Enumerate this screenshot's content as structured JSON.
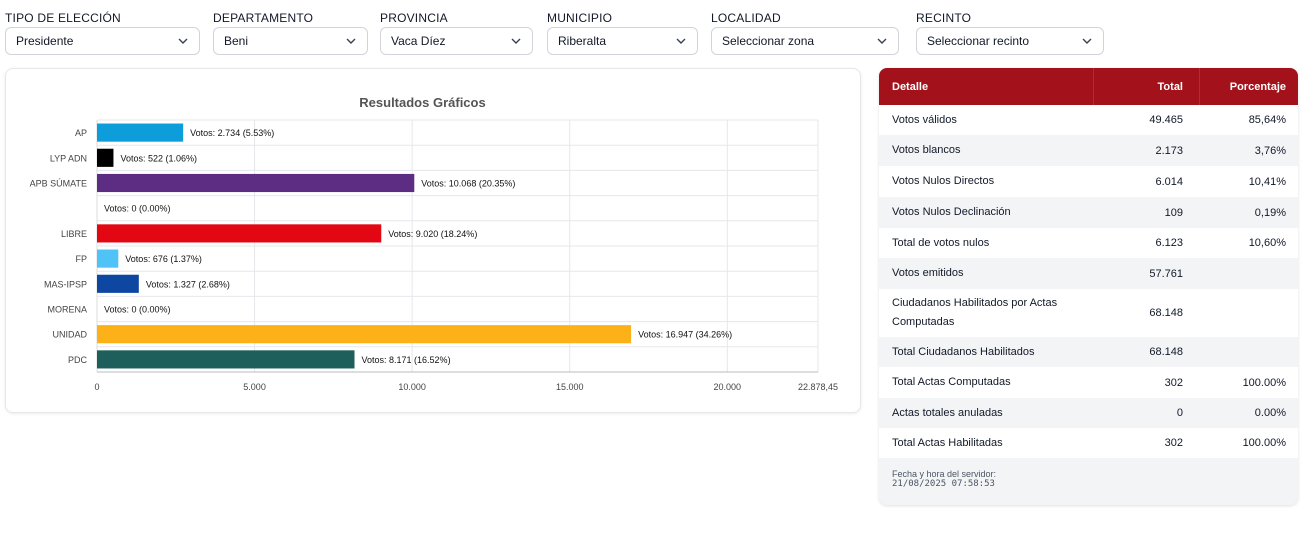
{
  "filters": [
    {
      "label": "TIPO DE ELECCIÓN",
      "value": "Presidente",
      "name": "tipo-eleccion"
    },
    {
      "label": "DEPARTAMENTO",
      "value": "Beni",
      "name": "departamento"
    },
    {
      "label": "PROVINCIA",
      "value": "Vaca Díez",
      "name": "provincia"
    },
    {
      "label": "MUNICIPIO",
      "value": "Riberalta",
      "name": "municipio"
    },
    {
      "label": "LOCALIDAD",
      "value": "Seleccionar zona",
      "name": "localidad"
    },
    {
      "label": "RECINTO",
      "value": "Seleccionar recinto",
      "name": "recinto"
    }
  ],
  "chart_data": {
    "type": "bar",
    "orientation": "horizontal",
    "title": "Resultados Gráficos",
    "categories": [
      "AP",
      "LYP ADN",
      "APB SÚMATE",
      "",
      "LIBRE",
      "FP",
      "MAS-IPSP",
      "MORENA",
      "UNIDAD",
      "PDC"
    ],
    "values": [
      2734,
      522,
      10068,
      0,
      9020,
      676,
      1327,
      0,
      16947,
      8171
    ],
    "data_labels": [
      "Votos: 2.734 (5.53%)",
      "Votos: 522 (1.06%)",
      "Votos: 10.068 (20.35%)",
      "Votos: 0 (0.00%)",
      "Votos: 9.020 (18.24%)",
      "Votos: 676 (1.37%)",
      "Votos: 1.327 (2.68%)",
      "Votos: 0 (0.00%)",
      "Votos: 16.947 (34.26%)",
      "Votos: 8.171 (16.52%)"
    ],
    "colors": [
      "#0d9ddb",
      "#000000",
      "#5c2d82",
      "#cccccc",
      "#e30613",
      "#4fc3f7",
      "#0d47a1",
      "#8b1a1a",
      "#fbb117",
      "#1f5f5b"
    ],
    "x_ticks": [
      0,
      5000,
      10000,
      15000,
      20000,
      22878.45
    ],
    "x_tick_labels": [
      "0",
      "5.000",
      "10.000",
      "15.000",
      "20.000",
      "22.878,45"
    ],
    "xlim": [
      0,
      22878.45
    ],
    "grid": true
  },
  "table": {
    "headers": {
      "detail": "Detalle",
      "total": "Total",
      "percent": "Porcentaje"
    },
    "rows": [
      {
        "label": "Votos válidos",
        "total": "49.465",
        "percent": "85,64%"
      },
      {
        "label": "Votos blancos",
        "total": "2.173",
        "percent": "3,76%"
      },
      {
        "label": "Votos Nulos Directos",
        "total": "6.014",
        "percent": "10,41%"
      },
      {
        "label": "Votos Nulos Declinación",
        "total": "109",
        "percent": "0,19%"
      },
      {
        "label": "Total de votos nulos",
        "total": "6.123",
        "percent": "10,60%"
      },
      {
        "label": "Votos emitidos",
        "total": "57.761",
        "percent": ""
      },
      {
        "label": "Ciudadanos Habilitados por Actas Computadas",
        "total": "68.148",
        "percent": ""
      },
      {
        "label": "Total Ciudadanos Habilitados",
        "total": "68.148",
        "percent": ""
      },
      {
        "label": "Total Actas Computadas",
        "total": "302",
        "percent": "100.00%"
      },
      {
        "label": "Actas totales anuladas",
        "total": "0",
        "percent": "0.00%"
      },
      {
        "label": "Total Actas Habilitadas",
        "total": "302",
        "percent": "100.00%"
      }
    ],
    "server_time_label": "Fecha y hora del servidor:",
    "server_time": "21/08/2025 07:58:53"
  },
  "icons": {
    "dropdown": "chevron-down-icon"
  }
}
